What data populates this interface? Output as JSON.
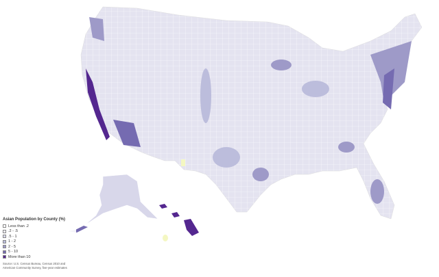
{
  "map": {
    "region": "United States counties",
    "colors": {
      "less_than_0_2": "#fcfbfd",
      "0_2_to_0_5": "#efedf5",
      "0_5_to_1": "#dadaeb",
      "1_to_2": "#bcbddc",
      "2_to_5": "#9e9ac8",
      "5_to_10": "#756bb1",
      "more_than_10": "#54278f",
      "no_data": "#f4f7c2",
      "border": "#ffffff"
    }
  },
  "legend": {
    "title": "Asian Population by County (%)",
    "items": [
      {
        "label": "Less than .2",
        "color": "#fcfbfd"
      },
      {
        "label": ".2 - .5",
        "color": "#efedf5"
      },
      {
        "label": ".5 - 1",
        "color": "#dadaeb"
      },
      {
        "label": "1 - 2",
        "color": "#bcbddc"
      },
      {
        "label": "2 - 5",
        "color": "#9e9ac8"
      },
      {
        "label": "5 - 10",
        "color": "#756bb1"
      },
      {
        "label": "More than 10",
        "color": "#54278f"
      }
    ],
    "source": "Source: U.S. Census Bureau, Census 2010 and American Community Survey, five-year estimates"
  }
}
